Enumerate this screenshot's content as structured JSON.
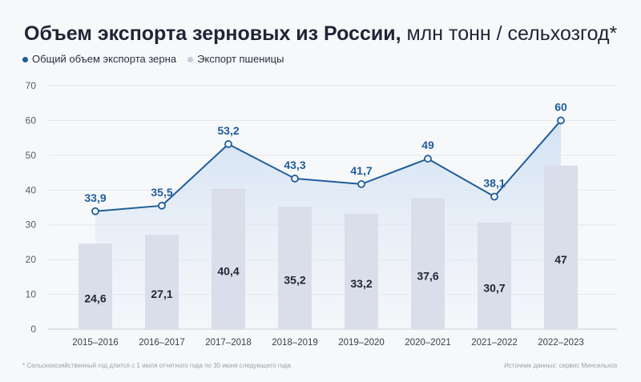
{
  "title": {
    "bold": "Объем экспорта зерновых из России,",
    "light": " млн тонн / сельхозгод*"
  },
  "legend": [
    {
      "label": "Общий объем экспорта зерна",
      "color": "#1f5d9c"
    },
    {
      "label": "Экспорт пшеницы",
      "color": "#c8ccd8"
    }
  ],
  "footnote": "* Сельскохозяйственный год длится с 1 июля отчетного года по 30 июня следующего года",
  "source": "Источник данных: сервис Минсельхоз",
  "chart_data": {
    "type": "bar+line",
    "categories": [
      "2015–2016",
      "2016–2017",
      "2017–2018",
      "2018–2019",
      "2019–2020",
      "2020–2021",
      "2021–2022",
      "2022–2023"
    ],
    "series": [
      {
        "name": "Общий объем экспорта зерна",
        "type": "line",
        "values": [
          33.9,
          35.5,
          53.2,
          43.3,
          41.7,
          49,
          38.1,
          60
        ],
        "labels": [
          "33,9",
          "35,5",
          "53,2",
          "43,3",
          "41,7",
          "49",
          "38,1",
          "60"
        ],
        "color": "#1f5d9c"
      },
      {
        "name": "Экспорт пшеницы",
        "type": "bar",
        "values": [
          24.6,
          27.1,
          40.4,
          35.2,
          33.2,
          37.6,
          30.7,
          47
        ],
        "labels": [
          "24,6",
          "27,1",
          "40,4",
          "35,2",
          "33,2",
          "37,6",
          "30,7",
          "47"
        ],
        "color": "#dadeea"
      }
    ],
    "ylim": [
      0,
      70
    ],
    "yticks": [
      0,
      10,
      20,
      30,
      40,
      50,
      60,
      70
    ],
    "grid": true,
    "legend": "top-left"
  }
}
